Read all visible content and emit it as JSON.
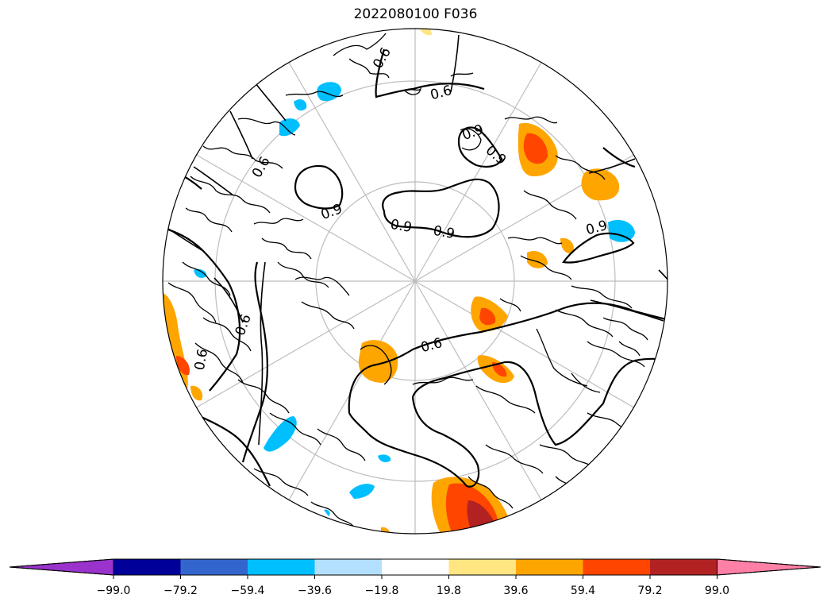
{
  "title": "2022080100 F036",
  "contour_labels": [
    "0.6",
    "0.6",
    "0.9",
    "0.9",
    "0.9",
    "0.9",
    "0.9",
    "0.9",
    "0.6",
    "0.6",
    "0.6",
    "0.6"
  ],
  "colorbar": {
    "colors": [
      "#9933cc",
      "#000099",
      "#3366cc",
      "#00bfff",
      "#b3e0ff",
      "#ffffff",
      "#ffe680",
      "#ffa500",
      "#ff4500",
      "#b22222",
      "#ff80a6"
    ],
    "tick_labels": [
      "−99.0",
      "−79.2",
      "−59.4",
      "−39.6",
      "−19.8",
      "19.8",
      "39.6",
      "59.4",
      "79.2",
      "99.0"
    ]
  }
}
